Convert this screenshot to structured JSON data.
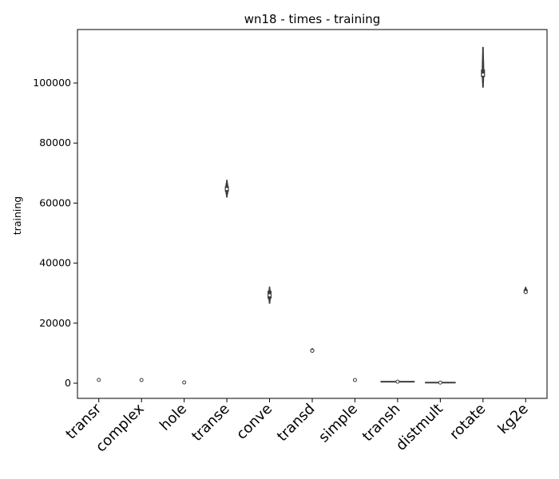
{
  "chart_data": {
    "type": "violin",
    "title": "wn18 - times - training",
    "xlabel": "",
    "ylabel": "training",
    "ylim": [
      -5000,
      118000
    ],
    "yticks": [
      0,
      20000,
      40000,
      60000,
      80000,
      100000
    ],
    "grid": false,
    "colors": {
      "violin": "#3d3d3d",
      "median": "#ffffff"
    },
    "categories": [
      "transr",
      "complex",
      "hole",
      "transe",
      "conve",
      "transd",
      "simple",
      "transh",
      "distmult",
      "rotate",
      "kg2e"
    ],
    "series": [
      {
        "min": 1100,
        "q1": 1100,
        "median": 1100,
        "q3": 1100,
        "max": 1100,
        "half_width": 0
      },
      {
        "min": 1050,
        "q1": 1050,
        "median": 1050,
        "q3": 1050,
        "max": 1050,
        "half_width": 0
      },
      {
        "min": 250,
        "q1": 250,
        "median": 250,
        "q3": 250,
        "max": 250,
        "half_width": 0
      },
      {
        "min": 62000,
        "q1": 63800,
        "median": 64700,
        "q3": 65600,
        "max": 67600,
        "half_width": 0.06
      },
      {
        "min": 26500,
        "q1": 28200,
        "median": 29300,
        "q3": 30800,
        "max": 32000,
        "half_width": 0.05
      },
      {
        "min": 10200,
        "q1": 10500,
        "median": 10800,
        "q3": 11300,
        "max": 11600,
        "half_width": 0.06
      },
      {
        "min": 1050,
        "q1": 1050,
        "median": 1050,
        "q3": 1050,
        "max": 1050,
        "half_width": 0
      },
      {
        "min": 500,
        "q1": 500,
        "median": 500,
        "q3": 500,
        "max": 500,
        "half_width": 0.4
      },
      {
        "min": 200,
        "q1": 200,
        "median": 200,
        "q3": 200,
        "max": 200,
        "half_width": 0.36
      },
      {
        "min": 98500,
        "q1": 102000,
        "median": 102800,
        "q3": 104500,
        "max": 112000,
        "half_width": 0.04
      },
      {
        "min": 29800,
        "q1": 30000,
        "median": 30400,
        "q3": 31200,
        "max": 32000,
        "half_width": 0.06
      }
    ]
  }
}
